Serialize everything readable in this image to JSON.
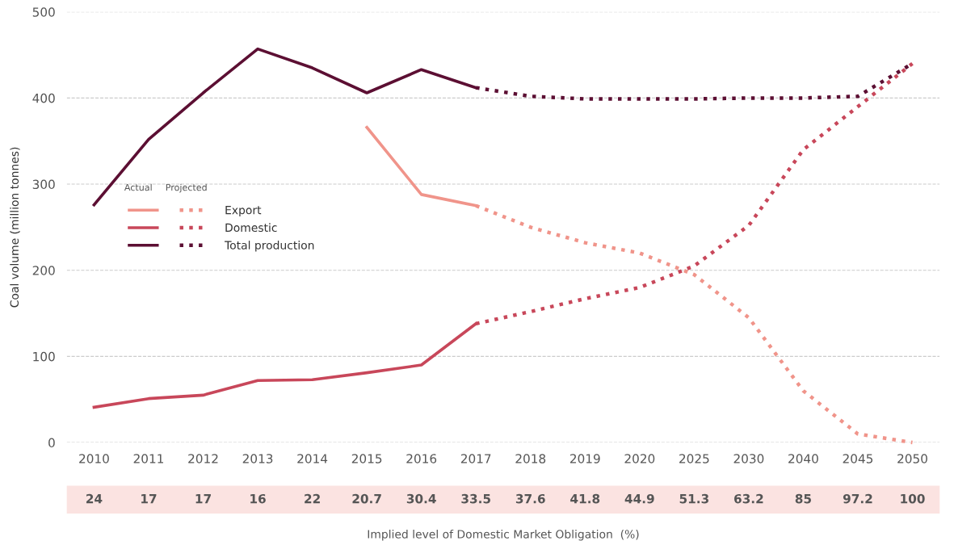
{
  "chart_data": {
    "type": "line",
    "ylabel": "Coal volume (million tonnes)",
    "categories": [
      "2010",
      "2011",
      "2012",
      "2013",
      "2014",
      "2015",
      "2016",
      "2017",
      "2018",
      "2019",
      "2020",
      "2025",
      "2030",
      "2040",
      "2045",
      "2050"
    ],
    "ylim": [
      0,
      500
    ],
    "yticks": [
      0,
      100,
      200,
      300,
      400,
      500
    ],
    "grid": "y",
    "legend": "left",
    "series": [
      {
        "name": "Export",
        "color": "#f0948a",
        "line_style": "solid",
        "values": [
          null,
          null,
          null,
          null,
          null,
          366,
          288,
          275,
          null,
          null,
          null,
          null,
          null,
          null,
          null,
          null
        ]
      },
      {
        "name": "Domestic",
        "color": "#c8475a",
        "line_style": "solid",
        "values": [
          41,
          51,
          55,
          72,
          73,
          81,
          90,
          138,
          null,
          null,
          null,
          null,
          null,
          null,
          null,
          null
        ]
      },
      {
        "name": "Total production",
        "color": "#5c0f33",
        "line_style": "solid",
        "values": [
          276,
          352,
          406,
          457,
          435,
          406,
          433,
          412,
          null,
          null,
          null,
          null,
          null,
          null,
          null,
          null
        ]
      },
      {
        "color": "#f0948a",
        "line_style": "dotted",
        "values": [
          null,
          null,
          null,
          null,
          null,
          null,
          null,
          275,
          250,
          232,
          220,
          195,
          145,
          60,
          10,
          0
        ]
      },
      {
        "color": "#c8475a",
        "line_style": "dotted",
        "values": [
          null,
          null,
          null,
          null,
          null,
          null,
          null,
          138,
          152,
          167,
          180,
          205,
          252,
          340,
          390,
          440
        ]
      },
      {
        "color": "#5c0f33",
        "line_style": "dotted",
        "values": [
          null,
          null,
          null,
          null,
          null,
          null,
          null,
          412,
          402,
          399,
          399,
          399,
          400,
          400,
          402,
          440
        ]
      }
    ],
    "annotations": [
      "Actual",
      "Projected",
      "24",
      "17",
      "17",
      "16",
      "22",
      "20.7",
      "30.4",
      "33.5",
      "37.6",
      "41.8",
      "44.9",
      "51.3",
      "63.2",
      "85",
      "97.2",
      "100",
      "Implied level of Domestic Market Obligation  (%)"
    ]
  }
}
